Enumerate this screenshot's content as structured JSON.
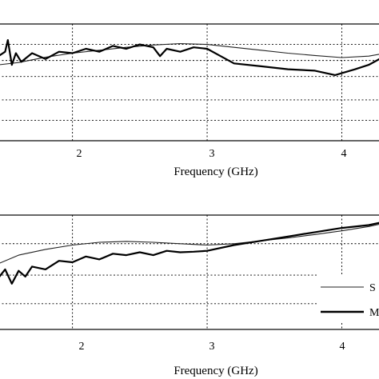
{
  "chart_data": [
    {
      "type": "line",
      "xlabel": "Frequency (GHz)",
      "ylabel": "",
      "x_ticks": [
        "2",
        "3",
        "4"
      ],
      "xlim": [
        1.45,
        4.3
      ],
      "ylim": [
        0,
        4
      ],
      "grid": true,
      "series": [
        {
          "x": [
            1.45,
            1.6,
            1.8,
            2.0,
            2.2,
            2.4,
            2.6,
            2.8,
            3.0,
            3.2,
            3.4,
            3.6,
            3.8,
            4.0,
            4.2,
            4.3
          ],
          "y": [
            2.6,
            2.68,
            2.86,
            3.0,
            3.1,
            3.2,
            3.28,
            3.33,
            3.3,
            3.2,
            3.1,
            3.0,
            2.92,
            2.85,
            2.9,
            2.98
          ]
        },
        {
          "x": [
            1.45,
            1.5,
            1.52,
            1.55,
            1.58,
            1.62,
            1.7,
            1.8,
            1.9,
            2.0,
            2.1,
            2.2,
            2.3,
            2.4,
            2.5,
            2.6,
            2.65,
            2.7,
            2.8,
            2.9,
            3.0,
            3.1,
            3.2,
            3.4,
            3.6,
            3.8,
            3.95,
            4.1,
            4.2,
            4.3
          ],
          "y": [
            2.9,
            3.05,
            3.45,
            2.6,
            3.0,
            2.7,
            3.0,
            2.8,
            3.05,
            3.0,
            3.15,
            3.05,
            3.25,
            3.15,
            3.3,
            3.2,
            2.9,
            3.15,
            3.05,
            3.2,
            3.15,
            2.9,
            2.65,
            2.55,
            2.45,
            2.4,
            2.25,
            2.45,
            2.6,
            2.85
          ]
        }
      ]
    },
    {
      "type": "line",
      "xlabel": "Frequency (GHz)",
      "ylabel": "",
      "x_ticks": [
        "2",
        "3",
        "4"
      ],
      "xlim": [
        1.45,
        4.3
      ],
      "ylim": [
        0,
        4
      ],
      "grid": true,
      "legend_entries": [
        "S",
        "M"
      ],
      "series": [
        {
          "x": [
            1.45,
            1.6,
            1.8,
            2.0,
            2.2,
            2.4,
            2.6,
            2.8,
            3.0,
            3.2,
            3.4,
            3.6,
            3.8,
            4.0,
            4.2,
            4.3
          ],
          "y": [
            2.3,
            2.6,
            2.8,
            2.95,
            3.05,
            3.08,
            3.05,
            3.0,
            2.95,
            3.0,
            3.1,
            3.2,
            3.32,
            3.45,
            3.6,
            3.7
          ]
        },
        {
          "x": [
            1.45,
            1.5,
            1.55,
            1.6,
            1.65,
            1.7,
            1.8,
            1.9,
            2.0,
            2.1,
            2.2,
            2.3,
            2.4,
            2.5,
            2.6,
            2.7,
            2.8,
            2.9,
            3.0,
            3.2,
            3.4,
            3.6,
            3.8,
            4.0,
            4.2,
            4.3
          ],
          "y": [
            1.8,
            2.1,
            1.6,
            2.05,
            1.85,
            2.2,
            2.1,
            2.4,
            2.35,
            2.55,
            2.45,
            2.65,
            2.6,
            2.7,
            2.6,
            2.75,
            2.7,
            2.72,
            2.75,
            2.95,
            3.1,
            3.25,
            3.4,
            3.55,
            3.65,
            3.75
          ]
        }
      ]
    }
  ]
}
